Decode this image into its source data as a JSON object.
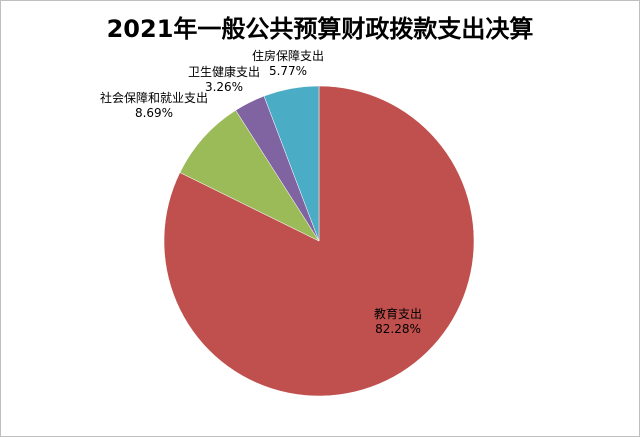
{
  "chart_data": {
    "type": "pie",
    "title": "2021年一般公共预算财政拨款支出决算",
    "categories": [
      "教育支出",
      "社会保障和就业支出",
      "卫生健康支出",
      "住房保障支出"
    ],
    "values": [
      82.28,
      8.69,
      3.26,
      5.77
    ],
    "value_labels": [
      "82.28%",
      "8.69%",
      "3.26%",
      "5.77%"
    ],
    "colors": [
      "#c0504d",
      "#9bbb59",
      "#8064a2",
      "#4bacc6"
    ]
  }
}
